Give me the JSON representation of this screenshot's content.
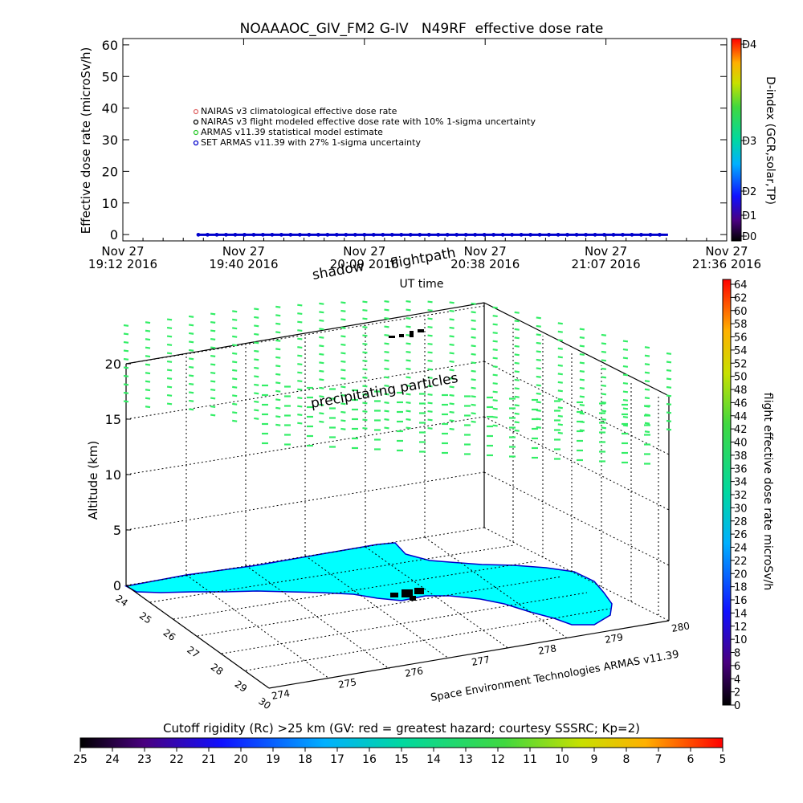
{
  "title": "NOAAAOC_GIV_FM2 G-IV   N49RF  effective dose rate",
  "top_chart": {
    "ylabel": "Effective dose rate (microSv/h)",
    "xlabel": "UT time",
    "yticks": [
      0,
      10,
      20,
      30,
      40,
      50,
      60
    ],
    "ylim": [
      -2,
      62
    ],
    "xtick_labels": [
      [
        "Nov 27",
        "19:12 2016"
      ],
      [
        "Nov 27",
        "19:40 2016"
      ],
      [
        "Nov 27",
        "20:09 2016"
      ],
      [
        "Nov 27",
        "20:38 2016"
      ],
      [
        "Nov 27",
        "21:07 2016"
      ],
      [
        "Nov 27",
        "21:36 2016"
      ]
    ],
    "legend": [
      {
        "text": "NAIRAS v3 climatological effective dose rate",
        "color": "#e06a6a"
      },
      {
        "text": "NAIRAS v3 flight modeled effective dose rate with 10% 1-sigma uncertainty",
        "color": "#000000"
      },
      {
        "text": "ARMAS v11.39 statistical model estimate",
        "color": "#33cc33"
      },
      {
        "text": "SET ARMAS v11.39 with 27% 1-sigma uncertainty",
        "color": "#0000cc"
      }
    ],
    "right_axis_label": "D-index (GCR,solar,TP)",
    "right_axis_ticks": [
      "D0",
      "D1",
      "D2",
      "D3",
      "D4"
    ]
  },
  "scene3d": {
    "zlabel": "Altitude (km)",
    "zticks": [
      0,
      5,
      10,
      15,
      20
    ],
    "lat_ticks": [
      24,
      25,
      26,
      27,
      28,
      29,
      30
    ],
    "lon_ticks": [
      274,
      275,
      276,
      277,
      278,
      279,
      280
    ],
    "annotation_shadow": "shadow",
    "annotation_flightpath": "flightpath",
    "annotation_particles": "precipitating particles",
    "credit": "Space Environment Technologies ARMAS v11.39",
    "land_color": "#00ffff",
    "coast_color": "#0000cc",
    "particle_color": "#33ee66"
  },
  "dose_colorbar": {
    "label": "flight effective dose rate microSv/h",
    "ticks": [
      0,
      2,
      4,
      6,
      8,
      10,
      12,
      14,
      16,
      18,
      20,
      22,
      24,
      26,
      28,
      30,
      32,
      34,
      36,
      38,
      40,
      42,
      44,
      46,
      48,
      50,
      52,
      54,
      56,
      58,
      60,
      62,
      64
    ]
  },
  "rigidity_colorbar": {
    "label": "Cutoff rigidity (Rc) >25 km (GV: red = greatest hazard; courtesy SSSRC; Kp=2)",
    "ticks": [
      25,
      24,
      23,
      22,
      21,
      20,
      19,
      18,
      17,
      16,
      15,
      14,
      13,
      12,
      11,
      10,
      9,
      8,
      7,
      6,
      5
    ]
  },
  "chart_data": {
    "type": "scatter",
    "title": "NOAAAOC_GIV_FM2 G-IV   N49RF  effective dose rate",
    "xlabel": "UT time",
    "ylabel": "Effective dose rate (microSv/h)",
    "ylim": [
      0,
      60
    ],
    "x_range": [
      "19:12",
      "21:36"
    ],
    "series": [
      {
        "name": "SET ARMAS v11.39 with 27% 1-sigma uncertainty",
        "x_range": [
          "19:30",
          "21:22"
        ],
        "y": 0.2,
        "color": "#0000cc"
      }
    ]
  }
}
